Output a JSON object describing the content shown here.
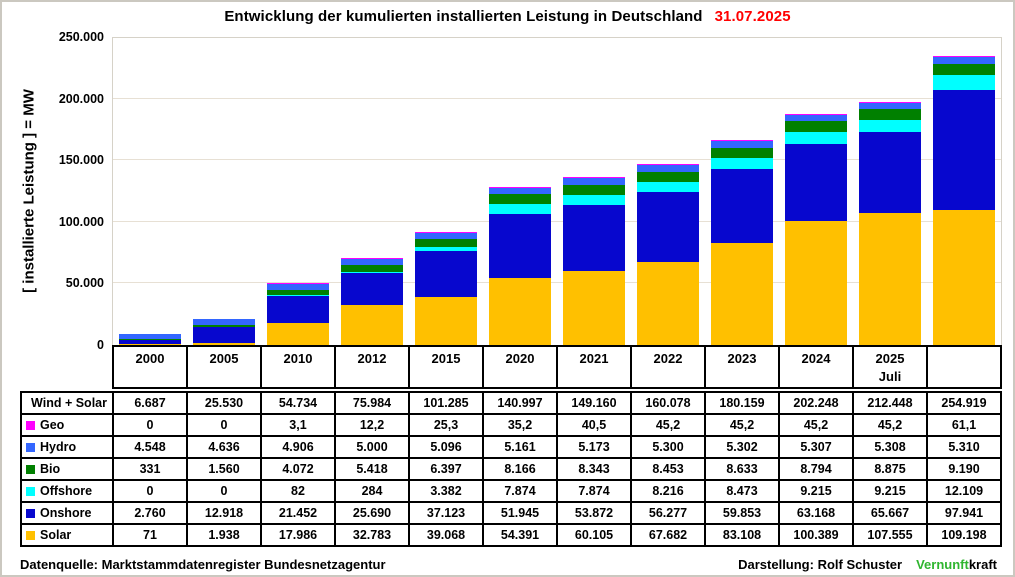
{
  "title": {
    "text": "Entwicklung der kumulierten installierten Leistung in Deutschland",
    "date": "31.07.2025",
    "date_color": "#ff0000"
  },
  "y_axis_title": "[ installierte Leistung ]  =  MW",
  "chart_data": {
    "type": "bar",
    "subtype": "stacked",
    "title": "Entwicklung der kumulierten installierten Leistung in Deutschland 31.07.2025",
    "ylabel": "[ installierte Leistung ] = MW",
    "ylim": [
      0,
      250000
    ],
    "grid": "horizontal",
    "legend_position": "table-left",
    "y_ticks": [
      {
        "value": 0,
        "label": "0"
      },
      {
        "value": 50000,
        "label": "50.000"
      },
      {
        "value": 100000,
        "label": "100.000"
      },
      {
        "value": 150000,
        "label": "150.000"
      },
      {
        "value": 200000,
        "label": "200.000"
      },
      {
        "value": 250000,
        "label": "250.000"
      }
    ],
    "categories": [
      "2000",
      "2005",
      "2010",
      "2012",
      "2015",
      "2020",
      "2021",
      "2022",
      "2023",
      "2024",
      "2025 Juli",
      ""
    ],
    "series_bottom_to_top": [
      {
        "name": "Solar",
        "color": "#FFC000",
        "values": [
          71,
          1938,
          17986,
          32783,
          39068,
          54391,
          60105,
          67682,
          83108,
          100389,
          107555,
          109198
        ]
      },
      {
        "name": "Onshore",
        "color": "#0707CE",
        "values": [
          2760,
          12918,
          21452,
          25690,
          37123,
          51945,
          53872,
          56277,
          59853,
          63168,
          65667,
          97941
        ]
      },
      {
        "name": "Offshore",
        "color": "#00FFFF",
        "values": [
          0,
          0,
          82,
          284,
          3382,
          7874,
          7874,
          8216,
          8473,
          9215,
          9215,
          12109
        ]
      },
      {
        "name": "Bio",
        "color": "#008000",
        "values": [
          331,
          1560,
          4072,
          5418,
          6397,
          8166,
          8343,
          8453,
          8633,
          8794,
          8875,
          9190
        ]
      },
      {
        "name": "Hydro",
        "color": "#3366FF",
        "values": [
          4548,
          4636,
          4906,
          5000,
          5096,
          5161,
          5173,
          5300,
          5302,
          5307,
          5308,
          5310
        ]
      },
      {
        "name": "Geo",
        "color": "#FF00FF",
        "values": [
          0,
          0,
          3.1,
          12.2,
          25.3,
          35.2,
          40.5,
          45.2,
          45.2,
          45.2,
          45.2,
          61.1
        ]
      }
    ]
  },
  "table": {
    "header": [
      {
        "line1": "2000",
        "line2": ""
      },
      {
        "line1": "2005",
        "line2": ""
      },
      {
        "line1": "2010",
        "line2": ""
      },
      {
        "line1": "2012",
        "line2": ""
      },
      {
        "line1": "2015",
        "line2": ""
      },
      {
        "line1": "2020",
        "line2": ""
      },
      {
        "line1": "2021",
        "line2": ""
      },
      {
        "line1": "2022",
        "line2": ""
      },
      {
        "line1": "2023",
        "line2": ""
      },
      {
        "line1": "2024",
        "line2": ""
      },
      {
        "line1": "2025",
        "line2": "Juli"
      },
      {
        "line1": "",
        "line2": ""
      }
    ],
    "rows": [
      {
        "label": "Wind + Solar",
        "chip": null,
        "values": [
          "6.687",
          "25.530",
          "54.734",
          "75.984",
          "101.285",
          "140.997",
          "149.160",
          "160.078",
          "180.159",
          "202.248",
          "212.448",
          "254.919"
        ]
      },
      {
        "label": "Geo",
        "chip": "#FF00FF",
        "values": [
          "0",
          "0",
          "3,1",
          "12,2",
          "25,3",
          "35,2",
          "40,5",
          "45,2",
          "45,2",
          "45,2",
          "45,2",
          "61,1"
        ]
      },
      {
        "label": "Hydro",
        "chip": "#3366FF",
        "values": [
          "4.548",
          "4.636",
          "4.906",
          "5.000",
          "5.096",
          "5.161",
          "5.173",
          "5.300",
          "5.302",
          "5.307",
          "5.308",
          "5.310"
        ]
      },
      {
        "label": "Bio",
        "chip": "#008000",
        "values": [
          "331",
          "1.560",
          "4.072",
          "5.418",
          "6.397",
          "8.166",
          "8.343",
          "8.453",
          "8.633",
          "8.794",
          "8.875",
          "9.190"
        ]
      },
      {
        "label": "Offshore",
        "chip": "#00FFFF",
        "values": [
          "0",
          "0",
          "82",
          "284",
          "3.382",
          "7.874",
          "7.874",
          "8.216",
          "8.473",
          "9.215",
          "9.215",
          "12.109"
        ]
      },
      {
        "label": "Onshore",
        "chip": "#0707CE",
        "values": [
          "2.760",
          "12.918",
          "21.452",
          "25.690",
          "37.123",
          "51.945",
          "53.872",
          "56.277",
          "59.853",
          "63.168",
          "65.667",
          "97.941"
        ]
      },
      {
        "label": "Solar",
        "chip": "#FFC000",
        "values": [
          "71",
          "1.938",
          "17.986",
          "32.783",
          "39.068",
          "54.391",
          "60.105",
          "67.682",
          "83.108",
          "100.389",
          "107.555",
          "109.198"
        ]
      }
    ]
  },
  "footer": {
    "source": "Datenquelle: Marktstammdatenregister Bundesnetzagentur",
    "credit": "Darstellung:  Rolf Schuster",
    "brand": {
      "green": "Vernunft",
      "black": "kraft",
      "green_color": "#2FB52F"
    }
  }
}
